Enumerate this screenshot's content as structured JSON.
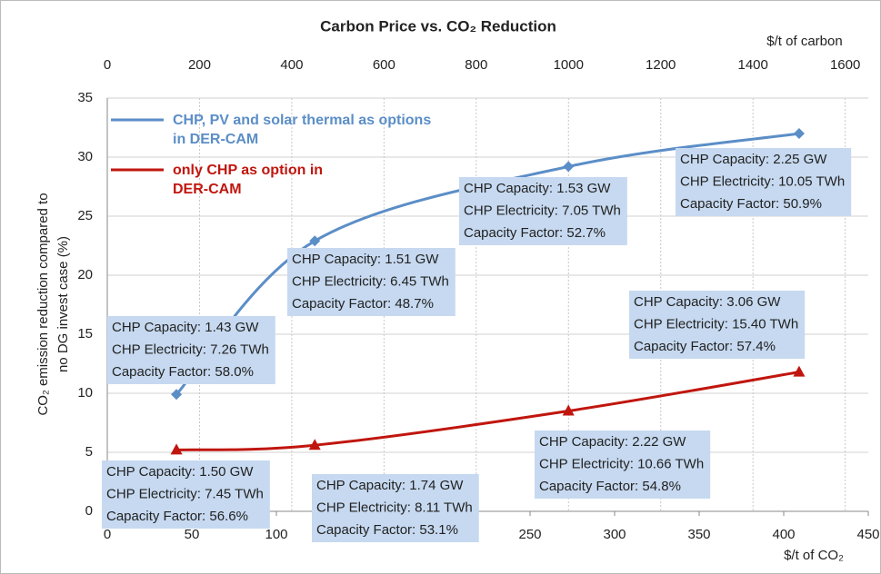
{
  "chart_data": {
    "type": "line",
    "title": "Carbon Price vs. CO₂ Reduction",
    "x_label": "$/t of CO₂",
    "x2_label": "$/t  of carbon",
    "y_label": [
      "CO₂ emission reduction compared to",
      "no DG invest case (%)"
    ],
    "xlim": [
      0,
      450
    ],
    "xticks": [
      0,
      50,
      100,
      150,
      200,
      250,
      300,
      350,
      400,
      450
    ],
    "x2lim": [
      0,
      1650
    ],
    "x2ticks": [
      0,
      200,
      400,
      600,
      800,
      1000,
      1200,
      1400,
      1600
    ],
    "ylim": [
      0,
      35
    ],
    "yticks": [
      0,
      5,
      10,
      15,
      20,
      25,
      30,
      35
    ],
    "grid": true,
    "legend": "upper-left",
    "series": [
      {
        "name": "CHP,  PV and  solar thermal as options in DER-CAM",
        "color": "#5b8ec7",
        "marker": "diamond",
        "x": [
          40.9,
          122.7,
          272.7,
          409.1
        ],
        "values": [
          9.9,
          22.9,
          29.2,
          32.0
        ],
        "annotations": [
          [
            "CHP Capacity: 1.43 GW",
            "CHP Electricity: 7.26 TWh",
            "Capacity Factor: 58.0%"
          ],
          [
            "CHP Capacity: 1.51 GW",
            "CHP Electricity: 6.45 TWh",
            "Capacity Factor: 48.7%"
          ],
          [
            "CHP Capacity: 1.53 GW",
            "CHP Electricity: 7.05 TWh",
            "Capacity Factor: 52.7%"
          ],
          [
            "CHP Capacity: 2.25 GW",
            "CHP Electricity: 10.05 TWh",
            "Capacity Factor: 50.9%"
          ]
        ]
      },
      {
        "name": "only CHP as option in DER-CAM",
        "color": "#c0160e",
        "marker": "triangle",
        "x": [
          40.9,
          122.7,
          272.7,
          409.1
        ],
        "values": [
          5.2,
          5.6,
          8.5,
          11.8
        ],
        "annotations": [
          [
            "CHP Capacity: 1.50 GW",
            "CHP Electricity: 7.45 TWh",
            "Capacity Factor: 56.6%"
          ],
          [
            "CHP Capacity: 1.74 GW",
            "CHP Electricity: 8.11 TWh",
            "Capacity Factor: 53.1%"
          ],
          [
            "CHP Capacity: 2.22 GW",
            "CHP Electricity: 10.66 TWh",
            "Capacity Factor: 54.8%"
          ],
          [
            "CHP Capacity: 3.06 GW",
            "CHP Electricity: 15.40 TWh",
            "Capacity Factor: 57.4%"
          ]
        ]
      }
    ]
  }
}
